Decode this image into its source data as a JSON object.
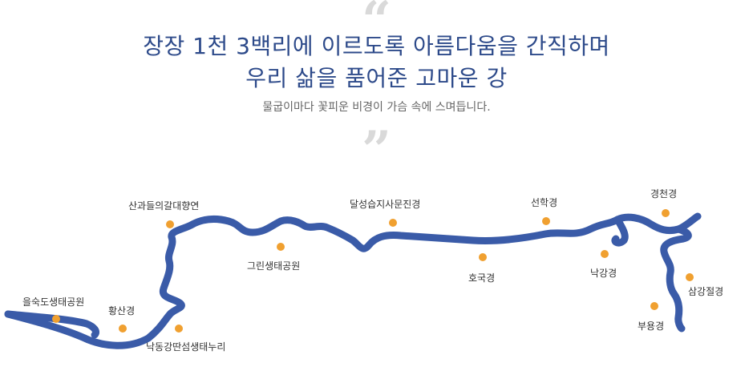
{
  "header": {
    "quote_open": "“",
    "line1": "장장 1천 3백리에 이르도록 아름다움을 간직하며",
    "line2": "우리 삶을 품어준 고마운 강",
    "subline": "물굽이마다 꽃피운 비경이 가슴 속에 스며듭니다.",
    "quote_close": "”"
  },
  "map": {
    "river_color": "#3a5ba8",
    "marker_color": "#f0a030",
    "places": [
      {
        "id": "eulsukdo",
        "label": "을숙도생태공원"
      },
      {
        "id": "hwangsan",
        "label": "황산경"
      },
      {
        "id": "nakdong-ttansum",
        "label": "낙동강딴섬생태누리"
      },
      {
        "id": "sangwa",
        "label": "산과들의갈대향연"
      },
      {
        "id": "green",
        "label": "그린생태공원"
      },
      {
        "id": "dalseong",
        "label": "달성습지사문진경"
      },
      {
        "id": "hoguk",
        "label": "호국경"
      },
      {
        "id": "seonhak",
        "label": "선학경"
      },
      {
        "id": "nakgang",
        "label": "낙강경"
      },
      {
        "id": "gyeongcheon",
        "label": "경천경"
      },
      {
        "id": "samgang",
        "label": "삼강절경"
      },
      {
        "id": "buyong",
        "label": "부용경"
      }
    ]
  }
}
